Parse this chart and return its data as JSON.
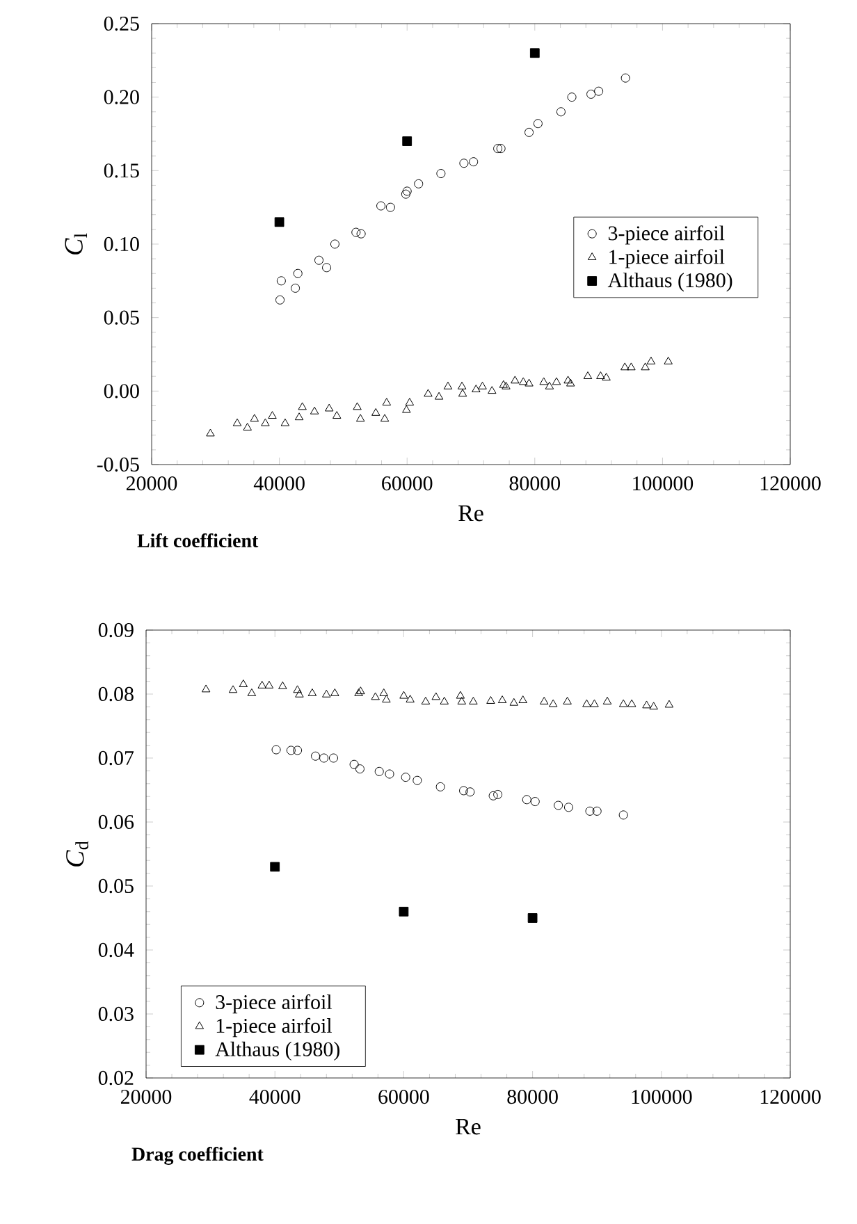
{
  "chart_data": [
    {
      "type": "scatter",
      "title": "Lift coefficient",
      "xlabel": "Re",
      "ylabel": "*C*$_{l}$",
      "legend": "right",
      "grid": false,
      "xlim": [
        20000,
        120000
      ],
      "xticks": [
        20000,
        40000,
        60000,
        80000,
        100000,
        120000
      ],
      "ylim": [
        -0.05,
        0.25
      ],
      "yticks": [
        {
          "value": -0.05,
          "label": "-0.05"
        },
        {
          "value": 0,
          "label": "0.00"
        },
        {
          "value": 0.05,
          "label": "0.05"
        },
        {
          "value": 0.1,
          "label": "0.10"
        },
        {
          "value": 0.15,
          "label": "0.15"
        },
        {
          "value": 0.2,
          "label": "0.20"
        },
        {
          "value": 0.25,
          "label": "0.25"
        }
      ],
      "series": [
        {
          "name": "3-piece airfoil",
          "color": "#000000",
          "marker": "circle",
          "x": [
            40100,
            40300,
            42500,
            42900,
            46200,
            47400,
            48700,
            52000,
            52800,
            55900,
            57400,
            59800,
            60000,
            61800,
            65300,
            68900,
            70400,
            74200,
            74700,
            79100,
            80500,
            84100,
            85800,
            88800,
            90000,
            94200
          ],
          "values": [
            0.062,
            0.075,
            0.07,
            0.08,
            0.089,
            0.084,
            0.1,
            0.108,
            0.107,
            0.126,
            0.125,
            0.134,
            0.136,
            0.141,
            0.148,
            0.155,
            0.156,
            0.165,
            0.165,
            0.176,
            0.182,
            0.19,
            0.2,
            0.202,
            0.204,
            0.213
          ]
        },
        {
          "name": "1-piece airfoil",
          "color": "#000000",
          "marker": "triangle",
          "x": [
            29200,
            33400,
            35000,
            36100,
            37800,
            38900,
            40900,
            43100,
            43600,
            45500,
            47800,
            49000,
            52200,
            52700,
            55100,
            56500,
            56800,
            59900,
            60400,
            63300,
            65000,
            66400,
            68600,
            68700,
            70800,
            71800,
            73300,
            75100,
            75500,
            76900,
            78200,
            79100,
            81400,
            82300,
            83400,
            85200,
            85600,
            88300,
            90300,
            91200,
            94100,
            95100,
            97300,
            98200,
            100900
          ],
          "values": [
            -0.029,
            -0.022,
            -0.025,
            -0.019,
            -0.022,
            -0.017,
            -0.022,
            -0.018,
            -0.011,
            -0.014,
            -0.012,
            -0.017,
            -0.011,
            -0.019,
            -0.015,
            -0.019,
            -0.008,
            -0.013,
            -0.008,
            -0.002,
            -0.004,
            0.003,
            0.003,
            -0.002,
            0.001,
            0.003,
            0.0,
            0.004,
            0.003,
            0.007,
            0.006,
            0.005,
            0.006,
            0.003,
            0.006,
            0.007,
            0.005,
            0.01,
            0.01,
            0.009,
            0.016,
            0.016,
            0.016,
            0.02,
            0.02
          ]
        },
        {
          "name": "Althaus (1980)",
          "color": "#000000",
          "marker": "square",
          "x": [
            40000,
            60000,
            80000
          ],
          "values": [
            0.115,
            0.17,
            0.23
          ]
        }
      ]
    },
    {
      "type": "scatter",
      "title": "Drag coefficient",
      "xlabel": "Re",
      "ylabel": "*C*$_{d}$",
      "legend": "bottom left",
      "grid": false,
      "xlim": [
        20000,
        120000
      ],
      "xticks": [
        20000,
        40000,
        60000,
        80000,
        100000,
        120000
      ],
      "ylim": [
        0.02,
        0.09
      ],
      "yticks": [
        {
          "value": 0.02,
          "label": "0.02"
        },
        {
          "value": 0.03,
          "label": "0.03"
        },
        {
          "value": 0.04,
          "label": "0.04"
        },
        {
          "value": 0.05,
          "label": "0.05"
        },
        {
          "value": 0.06,
          "label": "0.06"
        },
        {
          "value": 0.07,
          "label": "0.07"
        },
        {
          "value": 0.08,
          "label": "0.08"
        },
        {
          "value": 0.09,
          "label": "0.09"
        }
      ],
      "series": [
        {
          "name": "3-piece airfoil",
          "color": "#000000",
          "marker": "circle",
          "x": [
            40200,
            42500,
            43500,
            46300,
            47600,
            49100,
            52300,
            53200,
            56200,
            57800,
            60300,
            62100,
            65700,
            69300,
            70300,
            73900,
            74600,
            79100,
            80400,
            84000,
            85600,
            88900,
            90000,
            94100
          ],
          "values": [
            0.0713,
            0.0712,
            0.0712,
            0.0703,
            0.07,
            0.07,
            0.069,
            0.0683,
            0.0679,
            0.0675,
            0.067,
            0.0665,
            0.0655,
            0.0649,
            0.0647,
            0.0641,
            0.0643,
            0.0635,
            0.0632,
            0.0626,
            0.0623,
            0.0617,
            0.0617,
            0.0611
          ]
        },
        {
          "name": "1-piece airfoil",
          "color": "#000000",
          "marker": "triangle",
          "x": [
            29300,
            33500,
            35100,
            36400,
            38000,
            39100,
            41200,
            43500,
            43800,
            45800,
            48000,
            49300,
            53000,
            53300,
            55600,
            56900,
            57300,
            60000,
            61000,
            63400,
            65000,
            66300,
            68800,
            69000,
            70800,
            73500,
            75300,
            77100,
            78500,
            81800,
            83200,
            85400,
            88400,
            89600,
            91600,
            94100,
            95400,
            97700,
            98800,
            101200
          ],
          "values": [
            0.0807,
            0.0806,
            0.0815,
            0.0801,
            0.0813,
            0.0813,
            0.0812,
            0.0806,
            0.0799,
            0.0801,
            0.0799,
            0.0801,
            0.0801,
            0.0804,
            0.0795,
            0.0801,
            0.0791,
            0.0797,
            0.0791,
            0.0788,
            0.0795,
            0.0788,
            0.0797,
            0.0788,
            0.0788,
            0.0789,
            0.079,
            0.0786,
            0.079,
            0.0788,
            0.0784,
            0.0788,
            0.0784,
            0.0784,
            0.0788,
            0.0784,
            0.0784,
            0.0782,
            0.078,
            0.0783
          ]
        },
        {
          "name": "Althaus (1980)",
          "color": "#000000",
          "marker": "square",
          "x": [
            40000,
            60000,
            80000
          ],
          "values": [
            0.053,
            0.046,
            0.045
          ]
        }
      ]
    }
  ]
}
